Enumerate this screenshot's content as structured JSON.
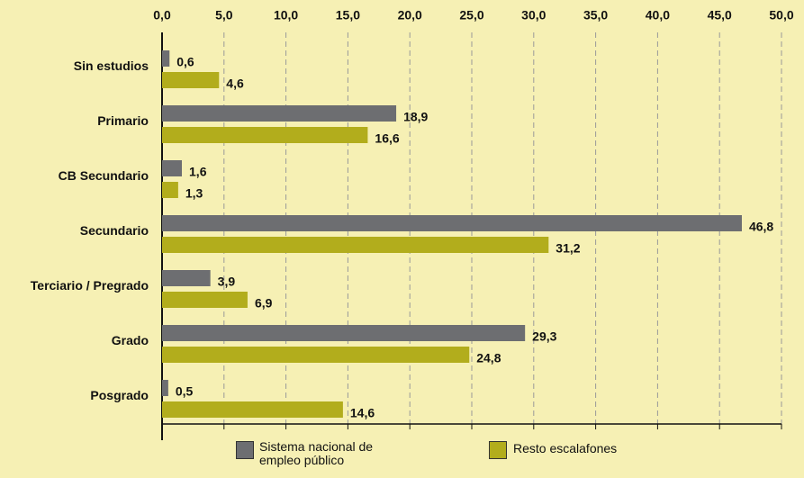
{
  "chart_data": {
    "type": "hbar",
    "categories": [
      "Sin estudios",
      "Primario",
      "CB Secundario",
      "Secundario",
      "Terciario / Pregrado",
      "Grado",
      "Posgrado"
    ],
    "series": [
      {
        "name": "Sistema nacional de empleo público",
        "color": "#6d6e71",
        "values": [
          0.6,
          18.9,
          1.6,
          46.8,
          3.9,
          29.3,
          0.5
        ],
        "value_labels": [
          "0,6",
          "18,9",
          "1,6",
          "46,8",
          "3,9",
          "29,3",
          "0,5"
        ]
      },
      {
        "name": "Resto escalafones",
        "color": "#b2ad1c",
        "values": [
          4.6,
          16.6,
          1.3,
          31.2,
          6.9,
          24.8,
          14.6
        ],
        "value_labels": [
          "4,6",
          "16,6",
          "1,3",
          "31,2",
          "6,9",
          "24,8",
          "14,6"
        ]
      }
    ],
    "xlim": [
      0,
      50
    ],
    "xticks": [
      {
        "value": 0,
        "label": "0,0"
      },
      {
        "value": 5,
        "label": "5,0"
      },
      {
        "value": 10,
        "label": "10,0"
      },
      {
        "value": 15,
        "label": "15,0"
      },
      {
        "value": 20,
        "label": "20,0"
      },
      {
        "value": 25,
        "label": "25,0"
      },
      {
        "value": 30,
        "label": "30,0"
      },
      {
        "value": 35,
        "label": "35,0"
      },
      {
        "value": 40,
        "label": "40,0"
      },
      {
        "value": 45,
        "label": "45,0"
      },
      {
        "value": 50,
        "label": "50,0"
      }
    ],
    "grid": true
  }
}
